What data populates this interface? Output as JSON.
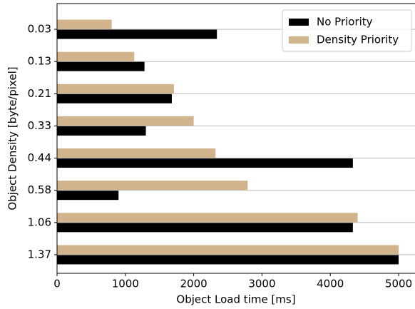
{
  "chart_data": {
    "type": "barh",
    "xlabel": "Object Load time [ms]",
    "ylabel": "Object Density [byte/pixel]",
    "categories": [
      "0.03",
      "0.13",
      "0.21",
      "0.33",
      "0.44",
      "0.58",
      "1.06",
      "1.37"
    ],
    "series": [
      {
        "name": "No Priority",
        "color": "#000000",
        "values": [
          2340,
          1280,
          1680,
          1300,
          4330,
          900,
          4330,
          5000
        ]
      },
      {
        "name": "Density Priority",
        "color": "#d2b48c",
        "values": [
          800,
          1130,
          1710,
          2000,
          2320,
          2790,
          4400,
          5000
        ]
      }
    ],
    "xlim": [
      0,
      5250
    ],
    "xticks": [
      0,
      1000,
      2000,
      3000,
      4000,
      5000
    ],
    "grid": true,
    "legend": "upper right"
  }
}
